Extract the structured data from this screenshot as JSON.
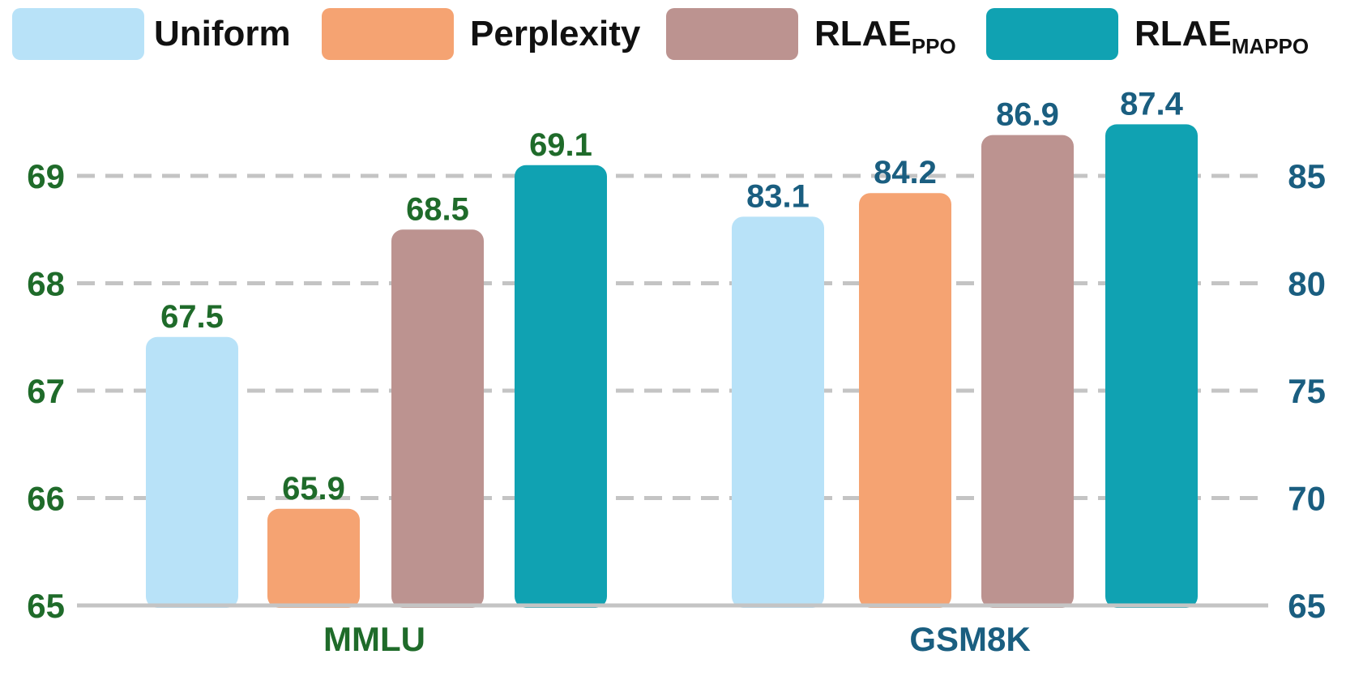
{
  "chart_data": {
    "type": "bar",
    "legend": [
      {
        "name": "Uniform",
        "base": "Uniform",
        "sub": "",
        "color": "#b8e2f8"
      },
      {
        "name": "Perplexity",
        "base": "Perplexity",
        "sub": "",
        "color": "#f5a372"
      },
      {
        "name": "RLAE_PPO",
        "base": "RLAE",
        "sub": "PPO",
        "color": "#bc9390"
      },
      {
        "name": "RLAE_MAPPO",
        "base": "RLAE",
        "sub": "MAPPO",
        "color": "#10a2b2"
      }
    ],
    "categories": [
      "MMLU",
      "GSM8K"
    ],
    "left_axis": {
      "ylim": [
        65,
        69.4
      ],
      "ticks": [
        "65",
        "66",
        "67",
        "68",
        "69"
      ],
      "color": "#1f6b2a"
    },
    "right_axis": {
      "ylim": [
        65,
        87.4
      ],
      "ticks": [
        "65",
        "70",
        "75",
        "80",
        "85"
      ],
      "color": "#1a5e80"
    },
    "groups": [
      {
        "category": "MMLU",
        "axis": "left",
        "color": "#1f6b2a",
        "values": [
          67.5,
          65.9,
          68.5,
          69.1
        ],
        "labels": [
          "67.5",
          "65.9",
          "68.5",
          "69.1"
        ]
      },
      {
        "category": "GSM8K",
        "axis": "right",
        "color": "#1a5e80",
        "values": [
          83.1,
          84.2,
          86.9,
          87.4
        ],
        "labels": [
          "83.1",
          "84.2",
          "86.9",
          "87.4"
        ]
      }
    ],
    "grid": "dashed horizontal",
    "legend_position": "top"
  }
}
